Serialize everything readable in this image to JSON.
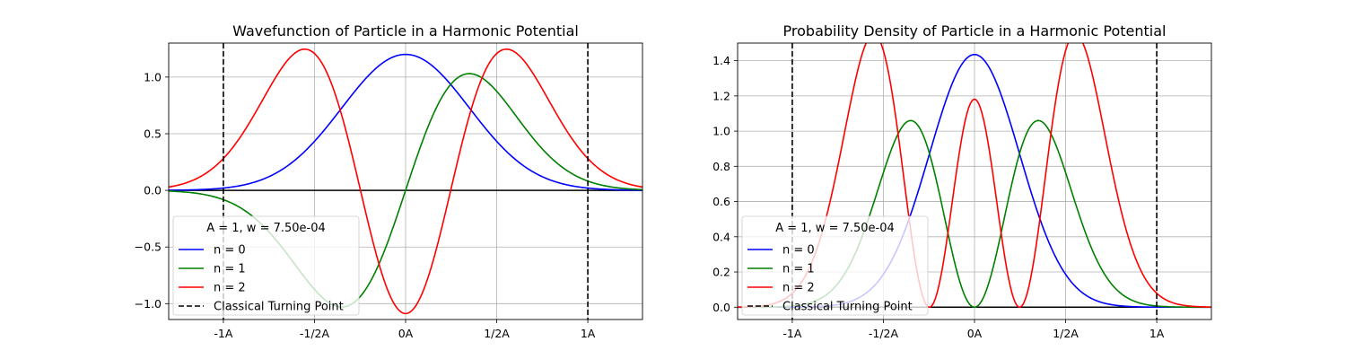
{
  "chart_data": [
    {
      "type": "line",
      "title": "Wavefunction of Particle in a Harmonic Potential",
      "xlabel": "",
      "ylabel": "",
      "xlim": [
        -1.3,
        1.3
      ],
      "ylim": [
        -1.14,
        1.3
      ],
      "xticks": [
        -1,
        -0.5,
        0,
        0.5,
        1
      ],
      "xtick_labels": [
        "-1A",
        "-1/2A",
        "0A",
        "1/2A",
        "1A"
      ],
      "yticks": [
        -1.0,
        -0.5,
        0.0,
        0.5,
        1.0
      ],
      "ytick_labels": [
        "−1.0",
        "−0.5",
        "0.0",
        "0.5",
        "1.0"
      ],
      "grid": true,
      "legend_position": "lower-left",
      "legend_title": "A = 1, w = 7.50e-04",
      "series": [
        {
          "name": "n = 0",
          "color": "#0000ff",
          "func": "psi0",
          "amplitude": 1.2
        },
        {
          "name": "n = 1",
          "color": "#008000",
          "func": "psi1",
          "amplitude": 1.03
        },
        {
          "name": "n = 2",
          "color": "#ff0000",
          "func": "psi2",
          "amplitude": 0.97
        },
        {
          "name": "Classical Turning Point",
          "color": "#000000",
          "style": "dashed",
          "x": [
            -1,
            1
          ]
        }
      ]
    },
    {
      "type": "line",
      "title": "Probability Density of Particle in a Harmonic Potential",
      "xlabel": "",
      "ylabel": "",
      "xlim": [
        -1.3,
        1.3
      ],
      "ylim": [
        -0.07,
        1.5
      ],
      "xticks": [
        -1,
        -0.5,
        0,
        0.5,
        1
      ],
      "xtick_labels": [
        "-1A",
        "-1/2A",
        "0A",
        "1/2A",
        "1A"
      ],
      "yticks": [
        0.0,
        0.2,
        0.4,
        0.6,
        0.8,
        1.0,
        1.2,
        1.4
      ],
      "ytick_labels": [
        "0.0",
        "0.2",
        "0.4",
        "0.6",
        "0.8",
        "1.0",
        "1.2",
        "1.4"
      ],
      "grid": true,
      "legend_position": "lower-left",
      "legend_title": "A = 1, w = 7.50e-04",
      "series": [
        {
          "name": "n = 0",
          "color": "#0000ff",
          "func": "rho0",
          "amplitude": 1.435
        },
        {
          "name": "n = 1",
          "color": "#008000",
          "func": "rho1",
          "amplitude": 1.06
        },
        {
          "name": "n = 2",
          "color": "#ff0000",
          "func": "rho2",
          "amplitude": 0.94
        },
        {
          "name": "Classical Turning Point",
          "color": "#000000",
          "style": "dashed",
          "x": [
            -1,
            1
          ]
        }
      ]
    }
  ]
}
